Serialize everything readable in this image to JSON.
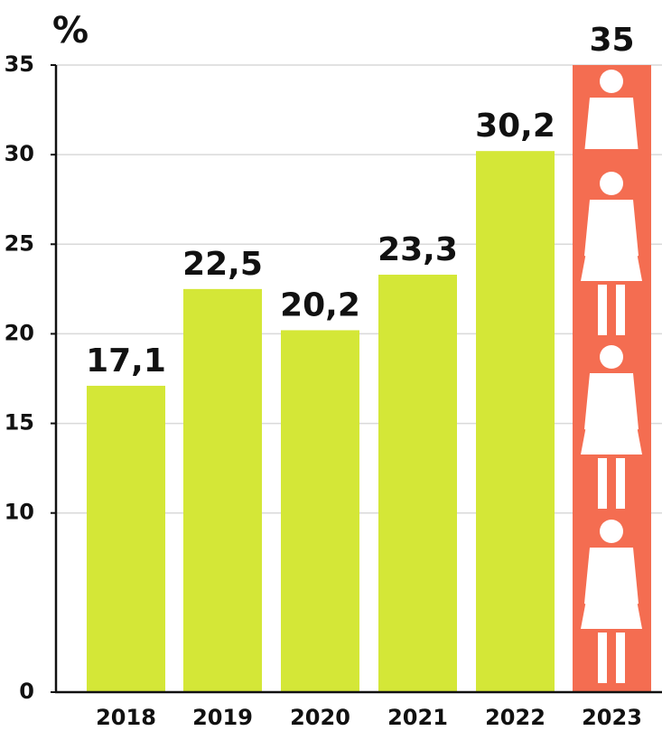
{
  "chart_data": {
    "type": "bar",
    "title": "%",
    "categories": [
      "2018",
      "2019",
      "2020",
      "2021",
      "2022",
      "2023"
    ],
    "values": [
      17.1,
      22.5,
      20.2,
      23.3,
      30.2,
      35
    ],
    "value_labels": [
      "17,1",
      "22,5",
      "20,2",
      "23,3",
      "30,2",
      "35"
    ],
    "colors": [
      "#d4e737",
      "#d4e737",
      "#d4e737",
      "#d4e737",
      "#d4e737",
      "#f46d51"
    ],
    "ylim": [
      0,
      35
    ],
    "yticks": [
      0,
      10,
      15,
      20,
      25,
      30,
      35
    ],
    "grid": true
  }
}
